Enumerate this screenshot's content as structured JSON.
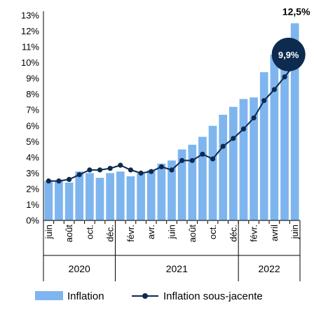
{
  "chart_data": {
    "type": "bar",
    "categories": [
      "juin",
      "",
      "août",
      "",
      "oct.",
      "",
      "déc.",
      "",
      "févr.",
      "",
      "avr.",
      "",
      "juin",
      "",
      "août",
      "",
      "oct.",
      "",
      "déc.",
      "",
      "févr.",
      "",
      "avril",
      "",
      "juin"
    ],
    "series": [
      {
        "name": "Inflation",
        "type": "bar",
        "color": "#7eb5ee",
        "values": [
          2.5,
          2.5,
          2.4,
          3.1,
          3.0,
          2.7,
          3.0,
          3.1,
          2.8,
          3.0,
          3.2,
          3.6,
          3.8,
          4.5,
          4.8,
          5.3,
          6.0,
          6.7,
          7.2,
          7.7,
          7.8,
          9.4,
          10.5,
          11.5,
          12.5
        ]
      },
      {
        "name": "Inflation sous-jacente",
        "type": "line",
        "color": "#0d2a4f",
        "values": [
          2.5,
          2.5,
          2.6,
          2.9,
          3.2,
          3.2,
          3.3,
          3.5,
          3.2,
          3.0,
          3.1,
          3.4,
          3.2,
          3.8,
          3.8,
          4.2,
          3.9,
          4.7,
          5.2,
          5.8,
          6.5,
          7.6,
          8.3,
          9.1,
          9.9
        ]
      }
    ],
    "y_ticks": [
      "0%",
      "1%",
      "2%",
      "3%",
      "4%",
      "5%",
      "6%",
      "7%",
      "8%",
      "9%",
      "10%",
      "11%",
      "12%",
      "13%"
    ],
    "ylim": [
      0,
      13
    ],
    "year_groups": [
      {
        "label": "2020",
        "start": 0,
        "end": 6
      },
      {
        "label": "2021",
        "start": 7,
        "end": 18
      },
      {
        "label": "2022",
        "start": 19,
        "end": 24
      }
    ],
    "annotations": {
      "bar_last_label": "12,5%",
      "line_last_label": "9,9%"
    },
    "legend_position": "bottom",
    "grid": false
  }
}
